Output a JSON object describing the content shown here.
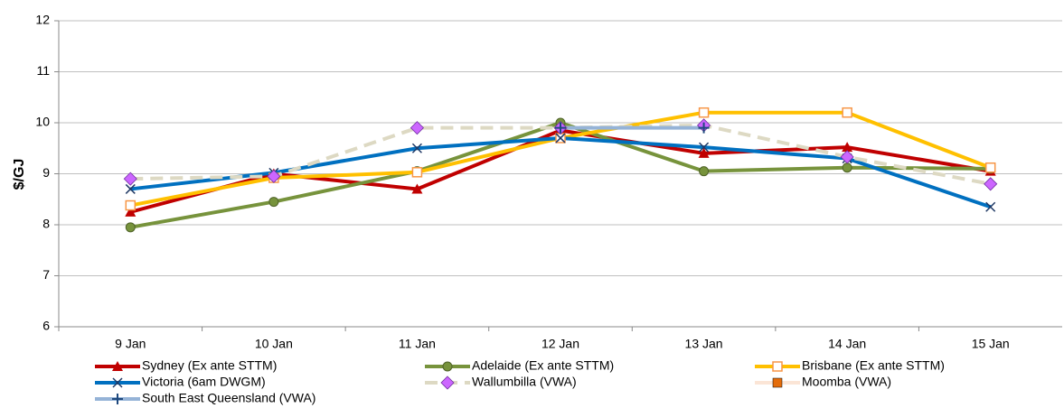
{
  "chart_data": {
    "type": "line",
    "y_label": "$/GJ",
    "categories": [
      "9 Jan",
      "10 Jan",
      "11 Jan",
      "12 Jan",
      "13 Jan",
      "14 Jan",
      "15 Jan"
    ],
    "ylim": [
      6,
      12
    ],
    "yticks": [
      6,
      7,
      8,
      9,
      10,
      11,
      12
    ],
    "grid": true,
    "series": [
      {
        "name": "Sydney (Ex ante STTM)",
        "color": "#c00000",
        "marker": "triangle",
        "marker_color": "#c00000",
        "values": [
          8.25,
          9.0,
          8.7,
          9.85,
          9.4,
          9.52,
          9.05
        ]
      },
      {
        "name": "Adelaide (Ex ante STTM)",
        "color": "#77933c",
        "marker": "circle",
        "marker_color": "#77933c",
        "values": [
          7.95,
          8.45,
          9.05,
          10.0,
          9.05,
          9.12,
          9.1
        ]
      },
      {
        "name": "Brisbane (Ex ante STTM)",
        "color": "#ffc000",
        "marker": "square-open",
        "marker_color": "#f79646",
        "values": [
          8.38,
          8.92,
          9.03,
          9.7,
          10.2,
          10.2,
          9.12
        ]
      },
      {
        "name": "Victoria (6am DWGM)",
        "color": "#0070c0",
        "marker": "x",
        "marker_color": "#1f3864",
        "values": [
          8.7,
          9.02,
          9.5,
          9.7,
          9.52,
          9.3,
          8.35
        ]
      },
      {
        "name": "Wallumbilla (VWA)",
        "color": "#ddd9c3",
        "dashed": true,
        "marker": "diamond",
        "marker_color": "#cc66ff",
        "values": [
          8.9,
          8.95,
          9.9,
          9.9,
          9.95,
          9.33,
          8.8
        ]
      },
      {
        "name": "Moomba (VWA)",
        "color": "#fbe5d6",
        "marker": "square",
        "marker_color": "#e46c0a",
        "values": [
          null,
          null,
          null,
          null,
          null,
          null,
          null
        ]
      },
      {
        "name": "South East Queensland (VWA)",
        "color": "#95b3d7",
        "marker": "plus",
        "marker_color": "#1f497d",
        "values": [
          null,
          null,
          null,
          9.9,
          9.9,
          null,
          null
        ]
      }
    ]
  }
}
